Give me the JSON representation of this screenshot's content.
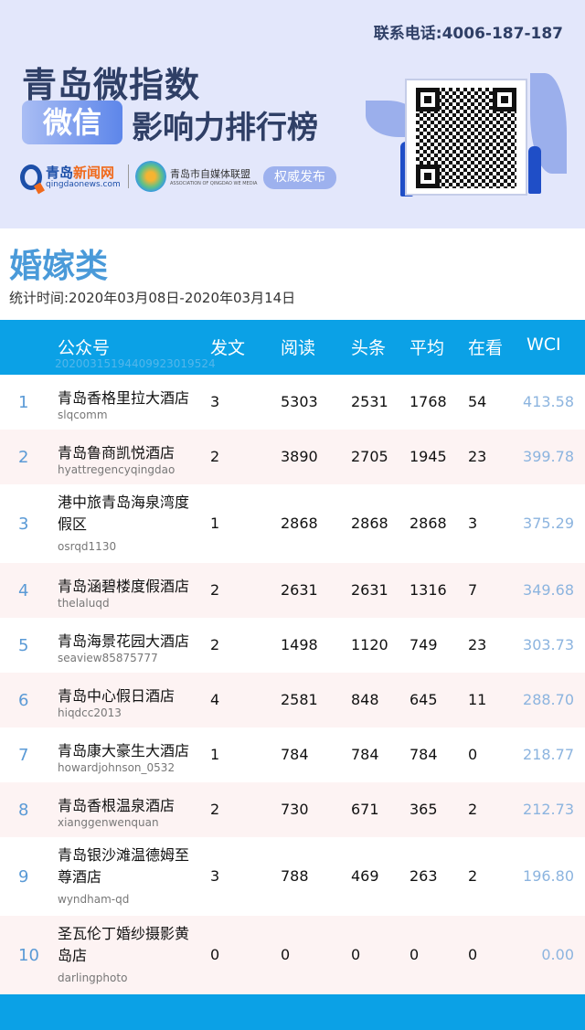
{
  "banner": {
    "phone": "联系电话:4006-187-187",
    "title_line1": "青岛微指数",
    "pill": "微信",
    "title_line2": "影响力排行榜",
    "logo1_name_a": "青岛",
    "logo1_name_b": "新闻网",
    "logo1_url": "qingdaonews.com",
    "logo2_name": "青岛市自媒体联盟",
    "logo2_en": "ASSOCIATION OF QINGDAO WE MEDIA",
    "badge": "权威发布"
  },
  "category": "婚嫁类",
  "period": "统计时间:2020年03月08日-2020年03月14日",
  "table": {
    "headers": [
      "公众号",
      "发文",
      "阅读",
      "头条",
      "平均",
      "在看",
      "WCI"
    ],
    "code": "20200315194409923019524",
    "rows": [
      {
        "rank": "1",
        "name": "青岛香格里拉大酒店",
        "id": "slqcomm",
        "posts": "3",
        "reads": "5303",
        "top": "2531",
        "avg": "1768",
        "likes": "54",
        "wci": "413.58"
      },
      {
        "rank": "2",
        "name": "青岛鲁商凯悦酒店",
        "id": "hyattregencyqingdao",
        "posts": "2",
        "reads": "3890",
        "top": "2705",
        "avg": "1945",
        "likes": "23",
        "wci": "399.78"
      },
      {
        "rank": "3",
        "name": "港中旅青岛海泉湾度假区",
        "id": "osrqd1130",
        "posts": "1",
        "reads": "2868",
        "top": "2868",
        "avg": "2868",
        "likes": "3",
        "wci": "375.29"
      },
      {
        "rank": "4",
        "name": "青岛涵碧楼度假酒店",
        "id": "thelaluqd",
        "posts": "2",
        "reads": "2631",
        "top": "2631",
        "avg": "1316",
        "likes": "7",
        "wci": "349.68"
      },
      {
        "rank": "5",
        "name": "青岛海景花园大酒店",
        "id": "seaview85875777",
        "posts": "2",
        "reads": "1498",
        "top": "1120",
        "avg": "749",
        "likes": "23",
        "wci": "303.73"
      },
      {
        "rank": "6",
        "name": "青岛中心假日酒店",
        "id": "hiqdcc2013",
        "posts": "4",
        "reads": "2581",
        "top": "848",
        "avg": "645",
        "likes": "11",
        "wci": "288.70"
      },
      {
        "rank": "7",
        "name": "青岛康大豪生大酒店",
        "id": "howardjohnson_0532",
        "posts": "1",
        "reads": "784",
        "top": "784",
        "avg": "784",
        "likes": "0",
        "wci": "218.77"
      },
      {
        "rank": "8",
        "name": "青岛香根温泉酒店",
        "id": "xianggenwenquan",
        "posts": "2",
        "reads": "730",
        "top": "671",
        "avg": "365",
        "likes": "2",
        "wci": "212.73"
      },
      {
        "rank": "9",
        "name": "青岛银沙滩温德姆至尊酒店",
        "id": "wyndham-qd",
        "posts": "3",
        "reads": "788",
        "top": "469",
        "avg": "263",
        "likes": "2",
        "wci": "196.80"
      },
      {
        "rank": "10",
        "name": "圣瓦伦丁婚纱摄影黄岛店",
        "id": "darlingphoto",
        "posts": "0",
        "reads": "0",
        "top": "0",
        "avg": "0",
        "likes": "0",
        "wci": "0.00"
      }
    ]
  }
}
